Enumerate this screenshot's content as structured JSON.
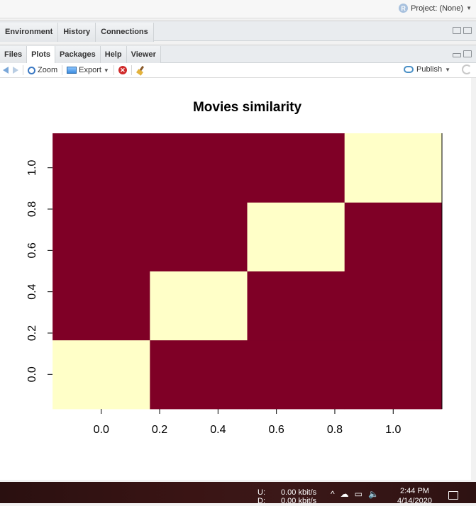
{
  "topbar": {
    "project_label": "Project: (None)"
  },
  "upper_pane": {
    "tabs": [
      {
        "label": "Environment"
      },
      {
        "label": "History"
      },
      {
        "label": "Connections"
      }
    ]
  },
  "lower_pane": {
    "tabs": [
      {
        "label": "Files"
      },
      {
        "label": "Plots"
      },
      {
        "label": "Packages"
      },
      {
        "label": "Help"
      },
      {
        "label": "Viewer"
      }
    ],
    "active_tab": "Plots"
  },
  "toolbar": {
    "zoom_label": "Zoom",
    "export_label": "Export",
    "publish_label": "Publish"
  },
  "chart_data": {
    "type": "heatmap",
    "title": "Movies similarity",
    "x_ticks": [
      "0.0",
      "0.2",
      "0.4",
      "0.6",
      "0.8",
      "1.0"
    ],
    "y_ticks": [
      "0.0",
      "0.2",
      "0.4",
      "0.6",
      "0.8",
      "1.0"
    ],
    "xlim": [
      -0.167,
      1.167
    ],
    "ylim": [
      -0.167,
      1.167
    ],
    "n": 4,
    "matrix": [
      [
        1,
        0,
        0,
        0
      ],
      [
        0,
        1,
        0,
        0
      ],
      [
        0,
        0,
        1,
        0
      ],
      [
        0,
        0,
        0,
        1
      ]
    ],
    "colors": {
      "high": "#ffffc8",
      "low": "#7f0026"
    }
  },
  "taskbar": {
    "net_up_label": "U:",
    "net_up_value": "0.00 kbit/s",
    "net_down_label": "D:",
    "net_down_value": "0.00 kbit/s",
    "time": "2:44 PM",
    "date": "4/14/2020"
  }
}
